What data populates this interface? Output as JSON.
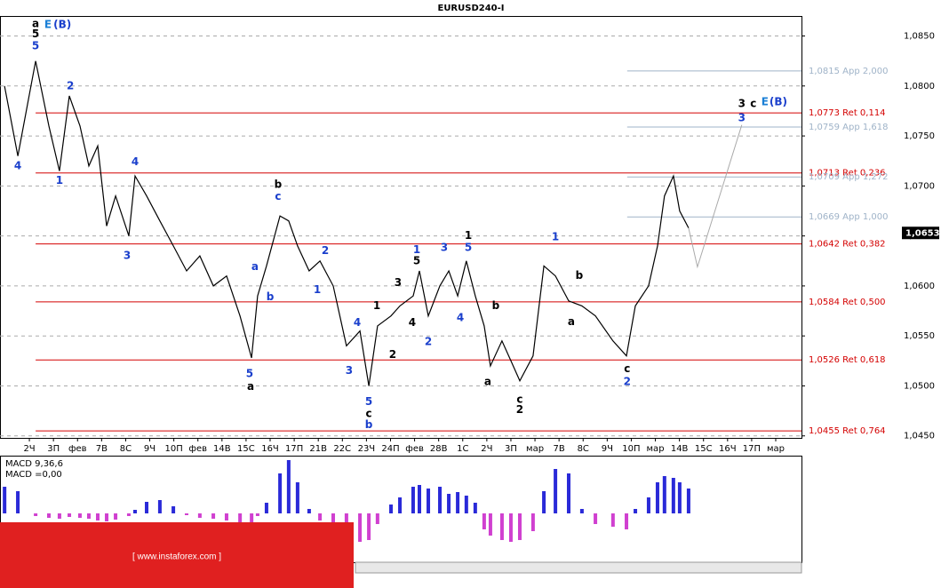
{
  "chart_data": {
    "type": "price-wave",
    "title": "EURUSD240-I",
    "categories": [
      "2Ч",
      "3П",
      "фев",
      "7В",
      "8С",
      "9Ч",
      "10П",
      "фев",
      "14В",
      "15С",
      "16Ч",
      "17П",
      "21В",
      "22С",
      "23Ч",
      "24П",
      "фев",
      "28В",
      "1С",
      "2Ч",
      "3П",
      "мар",
      "7В",
      "8С",
      "9Ч",
      "10П",
      "мар",
      "14В",
      "15С",
      "16Ч",
      "17П",
      "мар"
    ],
    "xlim": [
      -1.22,
      32.07
    ],
    "ylim": [
      1.0448,
      1.087
    ],
    "yticks": [
      {
        "value": 1.085,
        "label": "1,0850"
      },
      {
        "value": 1.08,
        "label": "1,0800"
      },
      {
        "value": 1.075,
        "label": "1,0750"
      },
      {
        "value": 1.07,
        "label": "1,0700"
      },
      {
        "value": 1.065,
        "label": "1,0650"
      },
      {
        "value": 1.06,
        "label": "1,0600"
      },
      {
        "value": 1.055,
        "label": "1,0550"
      },
      {
        "value": 1.05,
        "label": "1,0500"
      },
      {
        "value": 1.045,
        "label": "1,0450"
      }
    ],
    "grid": true,
    "current_price": {
      "value": 1.0653,
      "label": "1,0653"
    },
    "series": [
      {
        "name": "price",
        "color": "#000000",
        "x": [
          -1.03,
          -0.48,
          0.26,
          0.81,
          1.25,
          1.66,
          2.1,
          2.47,
          2.84,
          3.21,
          3.58,
          4.13,
          4.39,
          4.87,
          5.42,
          5.98,
          6.53,
          7.08,
          7.64,
          8.19,
          8.75,
          9.23,
          9.48,
          9.85,
          10.41,
          10.77,
          11.14,
          11.62,
          12.07,
          12.62,
          13.17,
          13.73,
          14.1,
          14.46,
          15.02,
          15.39,
          15.94,
          16.2,
          16.57,
          17.05,
          17.42,
          17.79,
          18.15,
          18.52,
          18.89,
          19.15,
          19.63,
          20.0,
          20.37,
          20.92,
          21.37,
          21.85,
          22.4,
          22.95,
          23.51,
          24.24,
          24.8,
          25.17,
          25.72,
          26.09,
          26.38,
          26.75,
          27.01,
          27.38
        ],
        "values": [
          1.08,
          1.073,
          1.0825,
          1.076,
          1.0715,
          1.079,
          1.076,
          1.072,
          1.074,
          1.066,
          1.069,
          1.065,
          1.071,
          1.069,
          1.0665,
          1.064,
          1.0615,
          1.063,
          1.06,
          1.061,
          1.057,
          1.0528,
          1.059,
          1.062,
          1.067,
          1.0665,
          1.064,
          1.0615,
          1.0625,
          1.06,
          1.054,
          1.0555,
          1.05,
          1.056,
          1.057,
          1.058,
          1.059,
          1.0615,
          1.057,
          1.06,
          1.0615,
          1.059,
          1.0625,
          1.059,
          1.056,
          1.052,
          1.0545,
          1.0525,
          1.0505,
          1.053,
          1.062,
          1.061,
          1.0585,
          1.058,
          1.057,
          1.0545,
          1.053,
          1.058,
          1.06,
          1.064,
          1.069,
          1.071,
          1.0675,
          1.0658
        ]
      }
    ],
    "projection": {
      "color": "#aaaaaa",
      "x": [
        27.38,
        27.75,
        29.59
      ],
      "values": [
        1.0658,
        1.0619,
        1.0761
      ]
    },
    "levels": [
      {
        "value": 1.0815,
        "label": "1,0815 App 2,000",
        "color": "#9fb3c8",
        "x_start": 24.83
      },
      {
        "value": 1.0773,
        "label": "1,0773 Ret 0,114",
        "color": "#d40000",
        "x_start": 0.26
      },
      {
        "value": 1.0759,
        "label": "1,0759 App 1,618",
        "color": "#9fb3c8",
        "x_start": 24.83
      },
      {
        "value": 1.0713,
        "label": "1,0713 Ret 0,236",
        "color": "#d40000",
        "x_start": 0.26
      },
      {
        "value": 1.0709,
        "label": "1,0709 App 1,272",
        "color": "#9fb3c8",
        "x_start": 24.83
      },
      {
        "value": 1.0669,
        "label": "1,0669 App 1,000",
        "color": "#9fb3c8",
        "x_start": 24.83
      },
      {
        "value": 1.0642,
        "label": "1,0642 Ret 0,382",
        "color": "#d40000",
        "x_start": 0.26
      },
      {
        "value": 1.0584,
        "label": "1,0584 Ret 0,500",
        "color": "#d40000",
        "x_start": 0.26
      },
      {
        "value": 1.0526,
        "label": "1,0526 Ret 0,618",
        "color": "#d40000",
        "x_start": 0.26
      },
      {
        "value": 1.0455,
        "label": "1,0455 Ret 0,764",
        "color": "#d40000",
        "x_start": 0.26
      }
    ],
    "annotations": [
      {
        "text": "a",
        "x": 0.26,
        "y": 1.0862,
        "color": "#000000"
      },
      {
        "text": "5",
        "x": 0.26,
        "y": 1.0852,
        "color": "#000000"
      },
      {
        "text": "5",
        "x": 0.26,
        "y": 1.084,
        "color": "#1a3fcc"
      },
      {
        "text": "E",
        "x": 0.77,
        "y": 1.0861,
        "color": "#1a7fd6"
      },
      {
        "text": "(B)",
        "x": 1.37,
        "y": 1.0861,
        "color": "#1a3fcc"
      },
      {
        "text": "4",
        "x": -0.48,
        "y": 1.072,
        "color": "#1a3fcc"
      },
      {
        "text": "1",
        "x": 1.25,
        "y": 1.0705,
        "color": "#1a3fcc"
      },
      {
        "text": "2",
        "x": 1.7,
        "y": 1.08,
        "color": "#1a3fcc"
      },
      {
        "text": "3",
        "x": 4.06,
        "y": 1.063,
        "color": "#1a3fcc"
      },
      {
        "text": "4",
        "x": 4.39,
        "y": 1.0724,
        "color": "#1a3fcc"
      },
      {
        "text": "b",
        "x": 10.33,
        "y": 1.0701,
        "color": "#000000"
      },
      {
        "text": "c",
        "x": 10.33,
        "y": 1.0689,
        "color": "#1a3fcc"
      },
      {
        "text": "a",
        "x": 9.37,
        "y": 1.0619,
        "color": "#1a3fcc"
      },
      {
        "text": "b",
        "x": 10.0,
        "y": 1.0589,
        "color": "#1a3fcc"
      },
      {
        "text": "5",
        "x": 9.15,
        "y": 1.0512,
        "color": "#1a3fcc"
      },
      {
        "text": "a",
        "x": 9.19,
        "y": 1.0499,
        "color": "#000000"
      },
      {
        "text": "1",
        "x": 11.96,
        "y": 1.0596,
        "color": "#1a3fcc"
      },
      {
        "text": "2",
        "x": 12.29,
        "y": 1.0635,
        "color": "#1a3fcc"
      },
      {
        "text": "3",
        "x": 13.28,
        "y": 1.0515,
        "color": "#1a3fcc"
      },
      {
        "text": "4",
        "x": 13.62,
        "y": 1.0563,
        "color": "#1a3fcc"
      },
      {
        "text": "5",
        "x": 14.1,
        "y": 1.0484,
        "color": "#1a3fcc"
      },
      {
        "text": "c",
        "x": 14.1,
        "y": 1.0472,
        "color": "#000000"
      },
      {
        "text": "b",
        "x": 14.1,
        "y": 1.0461,
        "color": "#1a3fcc"
      },
      {
        "text": "1",
        "x": 14.43,
        "y": 1.058,
        "color": "#000000"
      },
      {
        "text": "2",
        "x": 15.09,
        "y": 1.0531,
        "color": "#000000"
      },
      {
        "text": "3",
        "x": 15.31,
        "y": 1.0603,
        "color": "#000000"
      },
      {
        "text": "4",
        "x": 15.9,
        "y": 1.0563,
        "color": "#000000"
      },
      {
        "text": "1",
        "x": 16.09,
        "y": 1.0636,
        "color": "#1a3fcc"
      },
      {
        "text": "5",
        "x": 16.09,
        "y": 1.0625,
        "color": "#000000"
      },
      {
        "text": "2",
        "x": 16.57,
        "y": 1.0544,
        "color": "#1a3fcc"
      },
      {
        "text": "3",
        "x": 17.23,
        "y": 1.0638,
        "color": "#1a3fcc"
      },
      {
        "text": "4",
        "x": 17.9,
        "y": 1.0568,
        "color": "#1a3fcc"
      },
      {
        "text": "1",
        "x": 18.23,
        "y": 1.065,
        "color": "#000000"
      },
      {
        "text": "5",
        "x": 18.23,
        "y": 1.0638,
        "color": "#1a3fcc"
      },
      {
        "text": "a",
        "x": 19.04,
        "y": 1.0504,
        "color": "#000000"
      },
      {
        "text": "b",
        "x": 19.37,
        "y": 1.058,
        "color": "#000000"
      },
      {
        "text": "c",
        "x": 20.37,
        "y": 1.0486,
        "color": "#000000"
      },
      {
        "text": "2",
        "x": 20.37,
        "y": 1.0476,
        "color": "#000000"
      },
      {
        "text": "1",
        "x": 21.85,
        "y": 1.0649,
        "color": "#1a3fcc"
      },
      {
        "text": "b",
        "x": 22.84,
        "y": 1.061,
        "color": "#000000"
      },
      {
        "text": "a",
        "x": 22.51,
        "y": 1.0564,
        "color": "#000000"
      },
      {
        "text": "c",
        "x": 24.83,
        "y": 1.0517,
        "color": "#000000"
      },
      {
        "text": "2",
        "x": 24.83,
        "y": 1.0504,
        "color": "#1a3fcc"
      },
      {
        "text": "3",
        "x": 29.59,
        "y": 1.0782,
        "color": "#000000"
      },
      {
        "text": "3",
        "x": 29.59,
        "y": 1.0768,
        "color": "#1a3fcc"
      },
      {
        "text": "c",
        "x": 30.07,
        "y": 1.0782,
        "color": "#000000"
      },
      {
        "text": "E",
        "x": 30.55,
        "y": 1.0784,
        "color": "#1a7fd6"
      },
      {
        "text": "(B)",
        "x": 31.11,
        "y": 1.0784,
        "color": "#1a3fcc"
      }
    ],
    "macd": {
      "label": "MACD 9,36,6",
      "value_label": "MACD =0,00",
      "ylim": [
        -0.0055,
        0.0065
      ],
      "up_color": "#2a2ad8",
      "down_color": "#d040d0",
      "values": [
        0.003,
        0.0025,
        -0.0003,
        -0.0005,
        -0.0006,
        -0.0004,
        -0.0005,
        -0.0006,
        -0.0008,
        -0.0009,
        -0.0007,
        -0.0003,
        0.0004,
        0.0013,
        0.0015,
        0.0008,
        -0.0002,
        -0.0005,
        -0.0006,
        -0.0008,
        -0.0012,
        -0.001,
        -0.0003,
        0.0012,
        0.0045,
        0.006,
        0.0035,
        0.0005,
        -0.0008,
        -0.0015,
        -0.002,
        -0.0032,
        -0.003,
        -0.0012,
        0.001,
        0.0018,
        0.003,
        0.0032,
        0.0028,
        0.003,
        0.0022,
        0.0024,
        0.002,
        0.0012,
        -0.0018,
        -0.0025,
        -0.003,
        -0.0032,
        -0.003,
        -0.002,
        0.0025,
        0.005,
        0.0045,
        0.0005,
        -0.0012,
        -0.0015,
        -0.0018,
        0.0005,
        0.0018,
        0.0035,
        0.0042,
        0.004,
        0.0035,
        0.0028
      ]
    },
    "watermark": "[ www.instaforex.com ]"
  }
}
